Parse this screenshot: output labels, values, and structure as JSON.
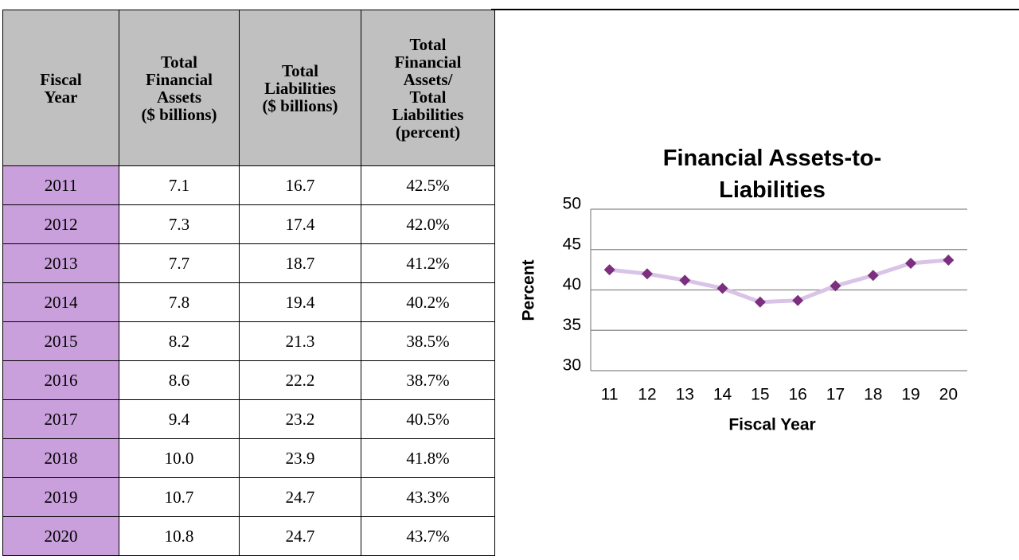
{
  "table": {
    "header": [
      "Fiscal\nYear",
      "Total\nFinancial\nAssets\n($ billions)",
      "Total\nLiabilities\n($ billions)",
      "Total\nFinancial\nAssets/\nTotal\nLiabilities\n(percent)"
    ],
    "rows": [
      [
        "2011",
        "7.1",
        "16.7",
        "42.5%"
      ],
      [
        "2012",
        "7.3",
        "17.4",
        "42.0%"
      ],
      [
        "2013",
        "7.7",
        "18.7",
        "41.2%"
      ],
      [
        "2014",
        "7.8",
        "19.4",
        "40.2%"
      ],
      [
        "2015",
        "8.2",
        "21.3",
        "38.5%"
      ],
      [
        "2016",
        "8.6",
        "22.2",
        "38.7%"
      ],
      [
        "2017",
        "9.4",
        "23.2",
        "40.5%"
      ],
      [
        "2018",
        "10.0",
        "23.9",
        "41.8%"
      ],
      [
        "2019",
        "10.7",
        "24.7",
        "43.3%"
      ],
      [
        "2020",
        "10.8",
        "24.7",
        "43.7%"
      ]
    ]
  },
  "chart_data": {
    "type": "line",
    "title": "Financial Assets-to-\nLiabilities",
    "x_label": "Fiscal Year",
    "y_label": "Percent",
    "categories": [
      "11",
      "12",
      "13",
      "14",
      "15",
      "16",
      "17",
      "18",
      "19",
      "20"
    ],
    "values": [
      42.5,
      42.0,
      41.2,
      40.2,
      38.5,
      38.7,
      40.5,
      41.8,
      43.3,
      43.7
    ],
    "color": "#d9c3e6",
    "marker_color": "#7b2f7e",
    "ylim": [
      30,
      50
    ],
    "yticks": [
      30,
      35,
      40,
      45,
      50
    ],
    "grid": true
  }
}
